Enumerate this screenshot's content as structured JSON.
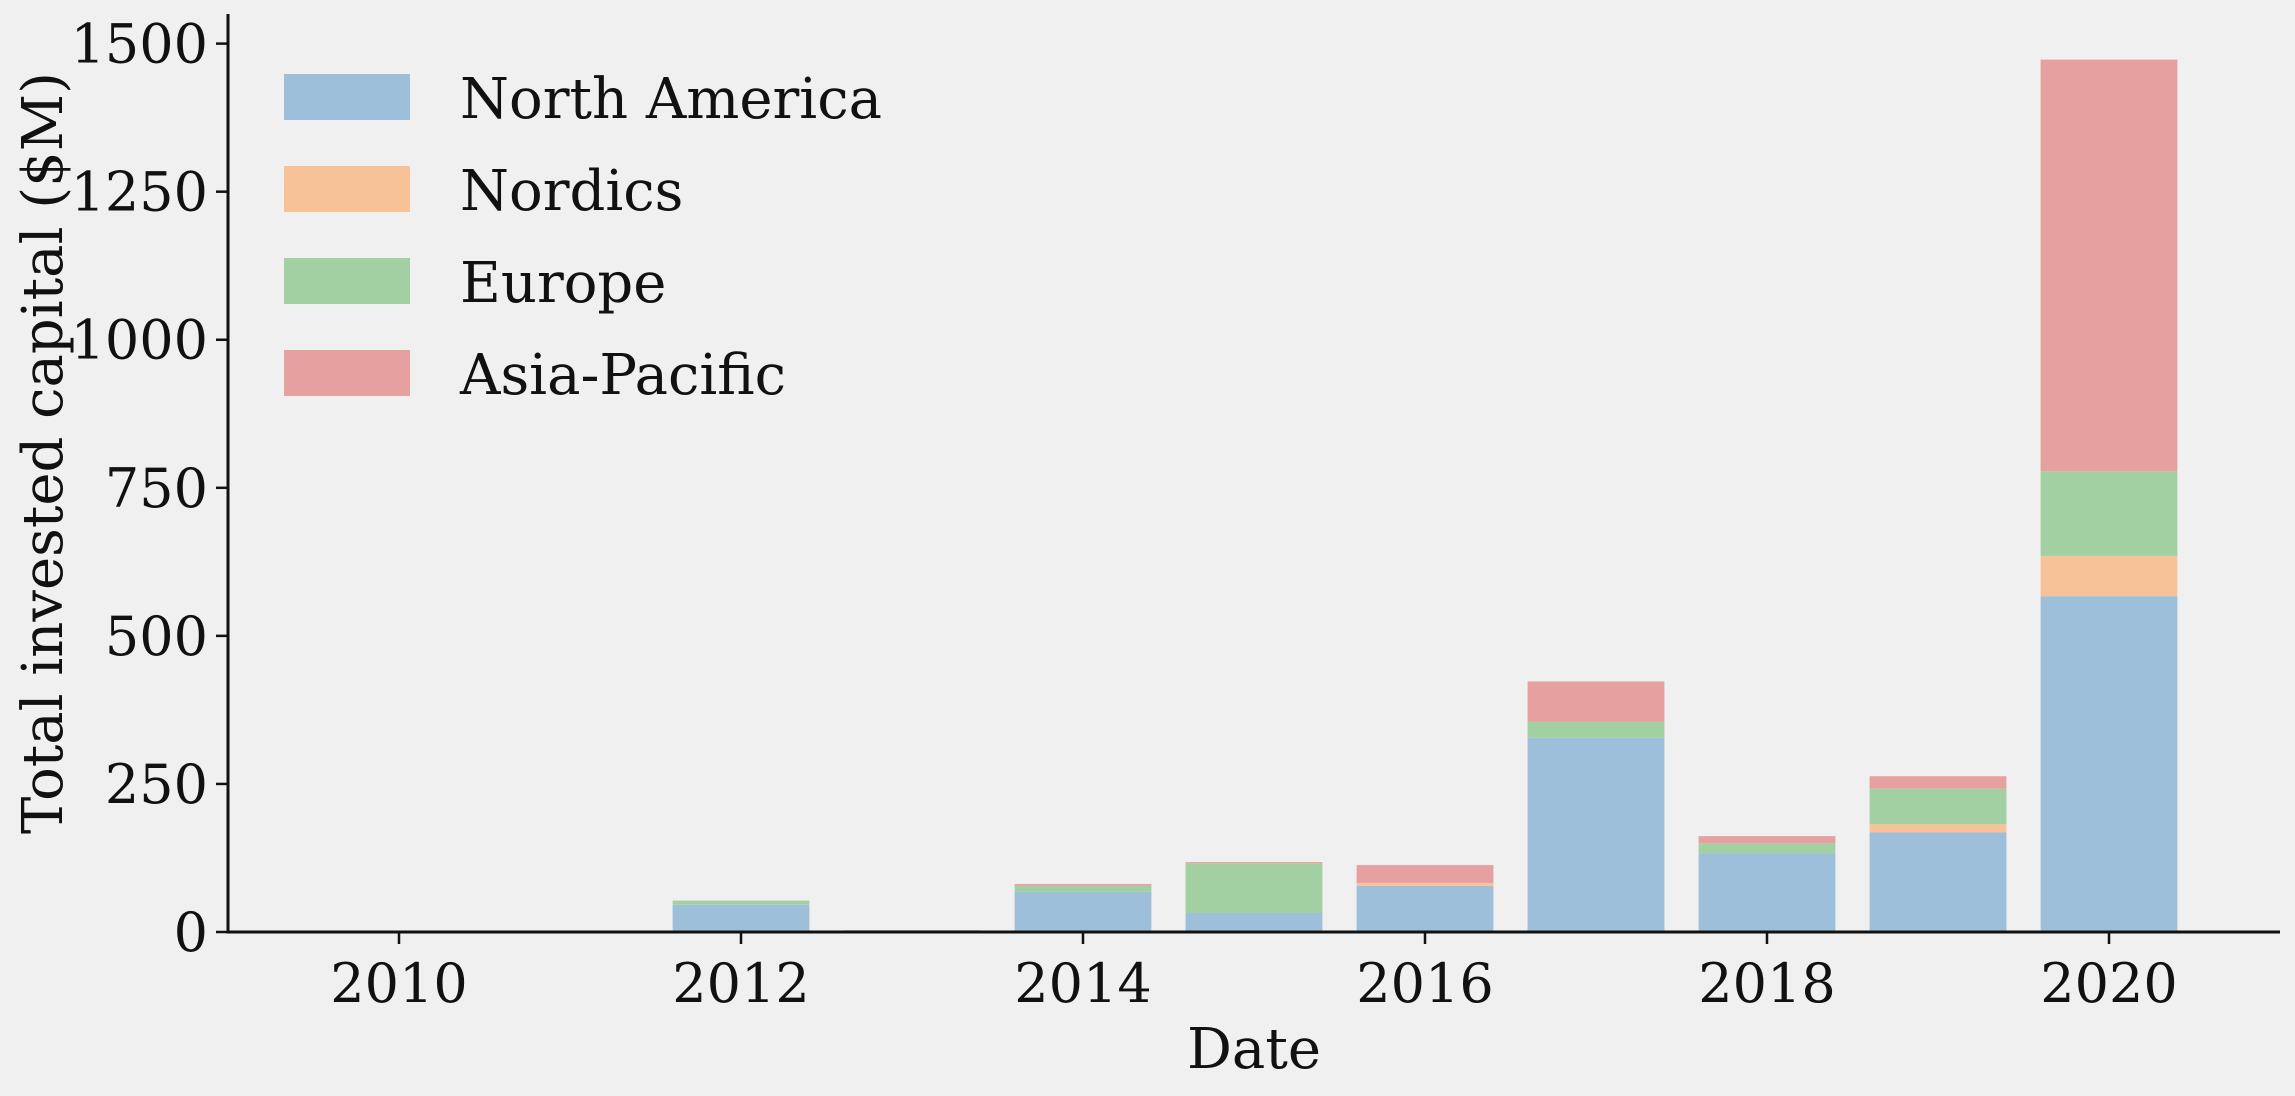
{
  "chart_data": {
    "type": "bar",
    "stacked": true,
    "xlabel": "Date",
    "ylabel": "Total invested capital ($M)",
    "x": [
      2010,
      2011,
      2012,
      2013,
      2014,
      2015,
      2016,
      2017,
      2018,
      2019,
      2020
    ],
    "xticks": [
      "2010",
      "2012",
      "2014",
      "2016",
      "2018",
      "2020"
    ],
    "xlim": [
      2009,
      2021
    ],
    "ylim": [
      0,
      1550
    ],
    "yticks": [
      "0",
      "250",
      "500",
      "750",
      "1000",
      "1250",
      "1500"
    ],
    "grid": false,
    "legend_position": "top-left",
    "series": [
      {
        "name": "North America",
        "color": "#9ebfd9",
        "values": [
          0,
          0,
          46,
          3,
          68,
          32,
          78,
          328,
          133,
          168,
          567
        ]
      },
      {
        "name": "Nordics",
        "color": "#f7c297",
        "values": [
          0,
          0,
          0,
          0,
          0,
          0,
          5,
          0,
          0,
          14,
          68
        ]
      },
      {
        "name": "Europe",
        "color": "#a2d0a2",
        "values": [
          0,
          0,
          7,
          0,
          10,
          84,
          0,
          27,
          17,
          60,
          143
        ]
      },
      {
        "name": "Asia-Pacific",
        "color": "#e6a0a0",
        "values": [
          0,
          0,
          0,
          0,
          3,
          2,
          30,
          68,
          12,
          21,
          695
        ]
      }
    ]
  }
}
